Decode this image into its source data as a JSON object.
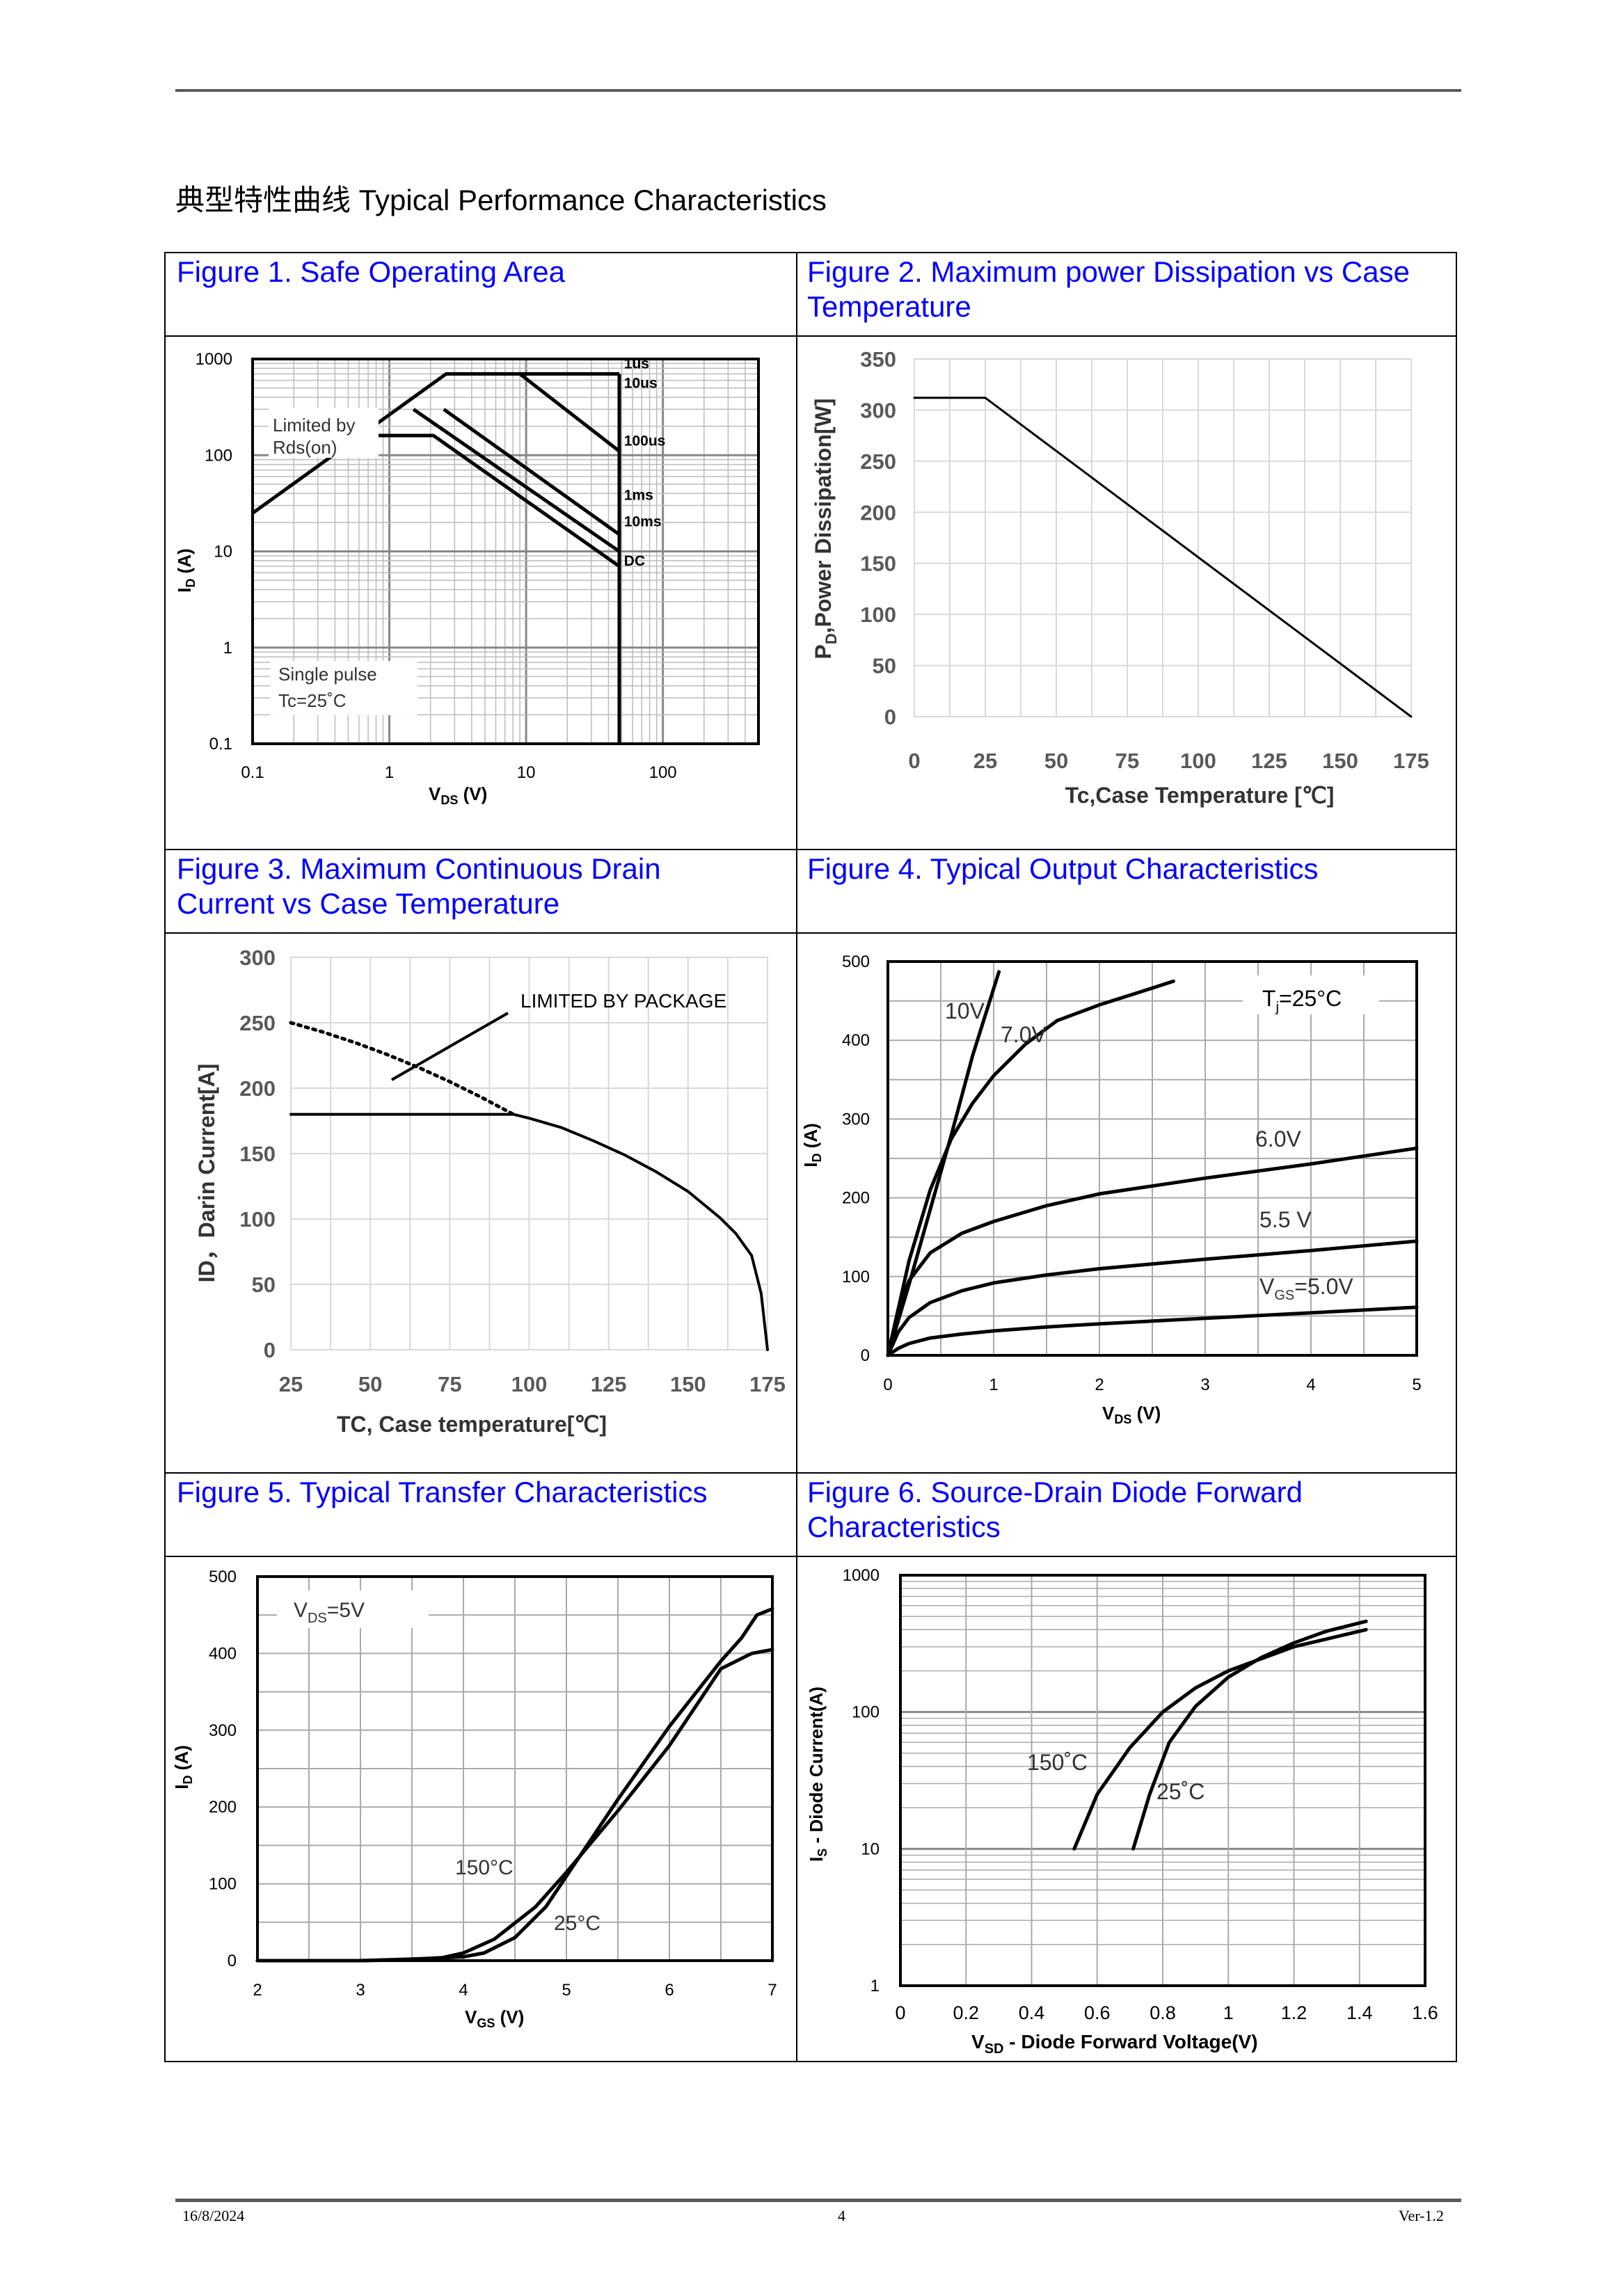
{
  "section_title": "典型特性曲线 Typical Performance Characteristics",
  "footer": {
    "date": "16/8/2024",
    "page": "4",
    "version": "Ver-1.2"
  },
  "figures": {
    "fig1": {
      "caption": "Figure 1. Safe Operating Area"
    },
    "fig2": {
      "caption_line1": "Figure 2. Maximum power Dissipation vs Case",
      "caption_line2": "Temperature"
    },
    "fig3": {
      "caption_line1": "Figure 3. Maximum Continuous Drain",
      "caption_line2": "Current vs Case Temperature"
    },
    "fig4": {
      "caption": "Figure 4. Typical Output Characteristics"
    },
    "fig5": {
      "caption": "Figure 5. Typical Transfer Characteristics"
    },
    "fig6": {
      "caption_line1": "Figure 6. Source-Drain Diode Forward",
      "caption_line2": "Characteristics"
    }
  },
  "chart_data": [
    {
      "id": "fig1",
      "type": "line",
      "xscale": "log",
      "yscale": "log",
      "xlim": [
        0.1,
        500
      ],
      "ylim": [
        0.1,
        1000
      ],
      "xticks": [
        "0.1",
        "1",
        "10",
        "100"
      ],
      "yticks": [
        "1000",
        "100",
        "10",
        "1",
        "0.1"
      ],
      "xlabel_main": "V",
      "xlabel_sub": "DS",
      "xlabel_unit": " (V)",
      "ylabel_main": "I",
      "ylabel_sub": "D",
      "ylabel_unit": " (A)",
      "annotations": {
        "limited_line1": "Limited by",
        "limited_line2": "Rds(on)",
        "pulse_line1": "Single pulse",
        "pulse_line2": "Tc=25˚C"
      },
      "series": [
        {
          "name": "1us",
          "x": [
            0.1,
            2.6,
            48
          ],
          "y": [
            25,
            700,
            700
          ]
        },
        {
          "name": "10us",
          "x": [
            9,
            48
          ],
          "y": [
            700,
            110
          ]
        },
        {
          "name": "100us",
          "x": [
            2.5,
            48
          ],
          "y": [
            300,
            15
          ]
        },
        {
          "name": "1ms",
          "x": [
            1.5,
            48
          ],
          "y": [
            300,
            10
          ]
        },
        {
          "name": "10ms",
          "x": [
            0.8,
            2.1,
            48
          ],
          "y": [
            160,
            160,
            7
          ]
        },
        {
          "name": "DC",
          "x": [
            48,
            48
          ],
          "y": [
            0.1,
            700
          ]
        }
      ]
    },
    {
      "id": "fig2",
      "type": "line",
      "xlim": [
        0,
        175
      ],
      "ylim": [
        0,
        350
      ],
      "xticks": [
        0,
        25,
        50,
        75,
        100,
        125,
        150,
        175
      ],
      "yticks": [
        0,
        50,
        100,
        150,
        200,
        250,
        300,
        350
      ],
      "xlabel": "Tc,Case Temperature [℃]",
      "ylabel_main": "P",
      "ylabel_sub": "D",
      "ylabel_unit": ",Power Dissipation[W]",
      "series": [
        {
          "x": [
            0,
            25,
            175
          ],
          "y": [
            312,
            312,
            0
          ]
        }
      ]
    },
    {
      "id": "fig3",
      "type": "line",
      "xlim": [
        25,
        175
      ],
      "ylim": [
        0,
        300
      ],
      "xticks": [
        25,
        50,
        75,
        100,
        125,
        150,
        175
      ],
      "yticks": [
        0,
        50,
        100,
        150,
        200,
        250,
        300
      ],
      "xlabel": "TC, Case temperature[℃]",
      "ylabel": "ID，Darin Current[A]",
      "annotation": "LIMITED BY PACKAGE",
      "series": [
        {
          "style": "solid",
          "x": [
            25,
            95,
            100,
            110,
            120,
            130,
            140,
            150,
            160,
            165,
            170,
            173,
            175
          ],
          "y": [
            180,
            180,
            177,
            170,
            160,
            149,
            136,
            121,
            101,
            89,
            72,
            43,
            0
          ]
        },
        {
          "style": "dotted",
          "x": [
            25,
            35,
            45,
            55,
            65,
            75,
            85,
            95
          ],
          "y": [
            250,
            243,
            235,
            226,
            216,
            205,
            193,
            180
          ]
        }
      ]
    },
    {
      "id": "fig4",
      "type": "line",
      "xlim": [
        0,
        5
      ],
      "ylim": [
        0,
        500
      ],
      "xticks": [
        0,
        1,
        2,
        3,
        4,
        5
      ],
      "yticks": [
        0,
        100,
        200,
        300,
        400,
        500
      ],
      "xlabel_main": "V",
      "xlabel_sub": "DS",
      "xlabel_unit": " (V)",
      "ylabel_main": "I",
      "ylabel_sub": "D",
      "ylabel_unit": " (A)",
      "legend": {
        "tj_main": "T",
        "tj_sub": "j",
        "tj_rest": "=25°C"
      },
      "labels": {
        "v10": "10V",
        "v7": "7.0V",
        "v6": "6.0V",
        "v55": "5.5 V",
        "vgs_main": "V",
        "vgs_sub": "GS",
        "vgs_rest": "=5.0V"
      },
      "series": [
        {
          "name": "10V",
          "x": [
            0,
            0.2,
            0.4,
            0.6,
            0.8,
            1.05
          ],
          "y": [
            0,
            90,
            185,
            280,
            380,
            487
          ]
        },
        {
          "name": "7.0V",
          "x": [
            0,
            0.2,
            0.4,
            0.6,
            0.8,
            1.0,
            1.3,
            1.6,
            2.0,
            2.4,
            2.7
          ],
          "y": [
            0,
            120,
            210,
            275,
            320,
            355,
            395,
            425,
            445,
            462,
            475
          ]
        },
        {
          "name": "6.0V",
          "x": [
            0,
            0.1,
            0.2,
            0.4,
            0.7,
            1.0,
            1.5,
            2.0,
            3.0,
            4.0,
            5.0
          ],
          "y": [
            0,
            60,
            95,
            130,
            155,
            170,
            190,
            205,
            225,
            243,
            263
          ]
        },
        {
          "name": "5.5 V",
          "x": [
            0,
            0.1,
            0.2,
            0.4,
            0.7,
            1.0,
            1.5,
            2.0,
            3.0,
            4.0,
            5.0
          ],
          "y": [
            0,
            30,
            48,
            67,
            82,
            92,
            102,
            110,
            122,
            133,
            145
          ]
        },
        {
          "name": "VGS=5.0V",
          "x": [
            0,
            0.1,
            0.2,
            0.4,
            0.7,
            1.0,
            1.5,
            2.0,
            3.0,
            4.0,
            5.0
          ],
          "y": [
            0,
            9,
            15,
            22,
            27,
            31,
            36,
            40,
            47,
            54,
            61
          ]
        }
      ]
    },
    {
      "id": "fig5",
      "type": "line",
      "xlim": [
        2,
        7
      ],
      "ylim": [
        0,
        500
      ],
      "xticks": [
        2,
        3,
        4,
        5,
        6,
        7
      ],
      "yticks": [
        0,
        100,
        200,
        300,
        400,
        500
      ],
      "xlabel_main": "V",
      "xlabel_sub": "GS",
      "xlabel_unit": " (V)",
      "ylabel_main": "I",
      "ylabel_sub": "D",
      "ylabel_unit": " (A)",
      "legend": {
        "vds_main": "V",
        "vds_sub": "DS",
        "vds_rest": "=5V"
      },
      "labels": {
        "t150": "150°C",
        "t25": "25°C"
      },
      "series": [
        {
          "name": "150°C",
          "x": [
            2,
            3,
            3.5,
            3.8,
            4.0,
            4.3,
            4.7,
            5.0,
            5.5,
            6.0,
            6.5,
            6.8,
            7.0
          ],
          "y": [
            0,
            0,
            1,
            4,
            10,
            28,
            70,
            115,
            195,
            280,
            380,
            400,
            405
          ]
        },
        {
          "name": "25°C",
          "x": [
            2,
            3,
            3.5,
            4.0,
            4.2,
            4.5,
            4.8,
            5.0,
            5.5,
            6.0,
            6.5,
            6.7,
            6.85,
            7.0
          ],
          "y": [
            0,
            0,
            2,
            5,
            10,
            30,
            70,
            110,
            210,
            305,
            390,
            420,
            450,
            458
          ]
        }
      ]
    },
    {
      "id": "fig6",
      "type": "line",
      "xscale": "linear",
      "yscale": "log",
      "xlim": [
        0,
        1.6
      ],
      "ylim": [
        1,
        1000
      ],
      "xticks": [
        "0",
        "0.2",
        "0.4",
        "0.6",
        "0.8",
        "1",
        "1.2",
        "1.4",
        "1.6"
      ],
      "yticks": [
        "1000",
        "100",
        "10",
        "1"
      ],
      "xlabel_main": "V",
      "xlabel_sub": "SD",
      "xlabel_unit": " - Diode Forward Voltage(V)",
      "ylabel_main": "I",
      "ylabel_sub": "S",
      "ylabel_unit": " - Diode Current(A)",
      "labels": {
        "t150": "150˚C",
        "t25": "25˚C"
      },
      "series": [
        {
          "name": "150˚C",
          "x": [
            0.53,
            0.6,
            0.7,
            0.8,
            0.9,
            1.0,
            1.2,
            1.42
          ],
          "y": [
            10,
            25,
            55,
            100,
            150,
            200,
            300,
            400
          ]
        },
        {
          "name": "25˚C",
          "x": [
            0.71,
            0.76,
            0.82,
            0.9,
            1.0,
            1.1,
            1.2,
            1.3,
            1.42
          ],
          "y": [
            10,
            25,
            60,
            110,
            180,
            250,
            320,
            390,
            460
          ]
        }
      ]
    }
  ]
}
